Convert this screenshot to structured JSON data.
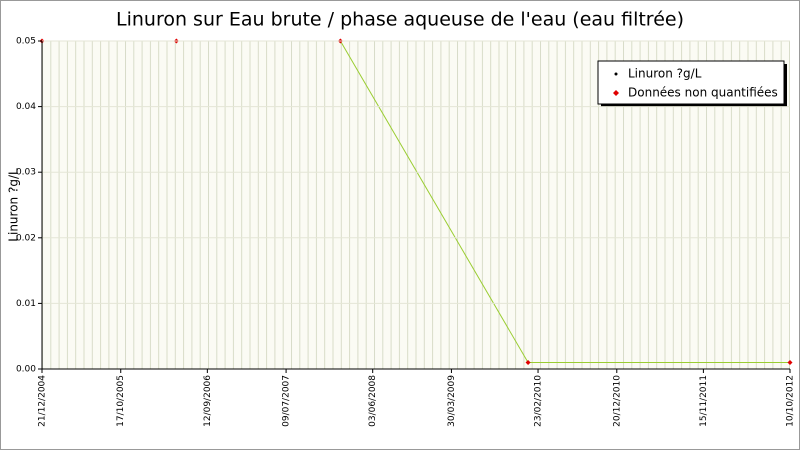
{
  "chart_data": {
    "type": "line",
    "title": "Linuron sur Eau brute / phase aqueuse de l'eau (eau filtrée)",
    "y_label": "Linuron ?g/L",
    "x": [
      "2004-12-21",
      "2006-05-17",
      "2008-02-01",
      "2010-01-16",
      "2012-10-10"
    ],
    "series": [
      {
        "name": "Linuron ?g/L",
        "color": "#9acd32",
        "values": [
          0.05,
          0.05,
          0.05,
          0.001,
          0.001
        ]
      },
      {
        "name": "Données non quantifiées",
        "color": "#e00000",
        "values": [
          0.05,
          0.05,
          0.05,
          0.001,
          0.001
        ]
      }
    ],
    "xlim": [
      "2004-12-21",
      "2012-10-10"
    ],
    "xticks": [
      {
        "value": "2004-12-21",
        "label": "21/12/2004"
      },
      {
        "value": "2005-10-17",
        "label": "17/10/2005"
      },
      {
        "value": "2006-09-12",
        "label": "12/09/2006"
      },
      {
        "value": "2007-07-09",
        "label": "09/07/2007"
      },
      {
        "value": "2008-06-03",
        "label": "03/06/2008"
      },
      {
        "value": "2009-03-30",
        "label": "30/03/2009"
      },
      {
        "value": "2010-02-23",
        "label": "23/02/2010"
      },
      {
        "value": "2010-12-20",
        "label": "20/12/2010"
      },
      {
        "value": "2011-11-15",
        "label": "15/11/2011"
      },
      {
        "value": "2012-10-10",
        "label": "10/10/2012"
      }
    ],
    "ylim": [
      0,
      0.05
    ],
    "yticks": [
      {
        "value": 0,
        "label": "0.00"
      },
      0.01,
      0.02,
      0.03,
      0.04,
      0.05
    ],
    "grid": true,
    "legend": "top-right"
  }
}
